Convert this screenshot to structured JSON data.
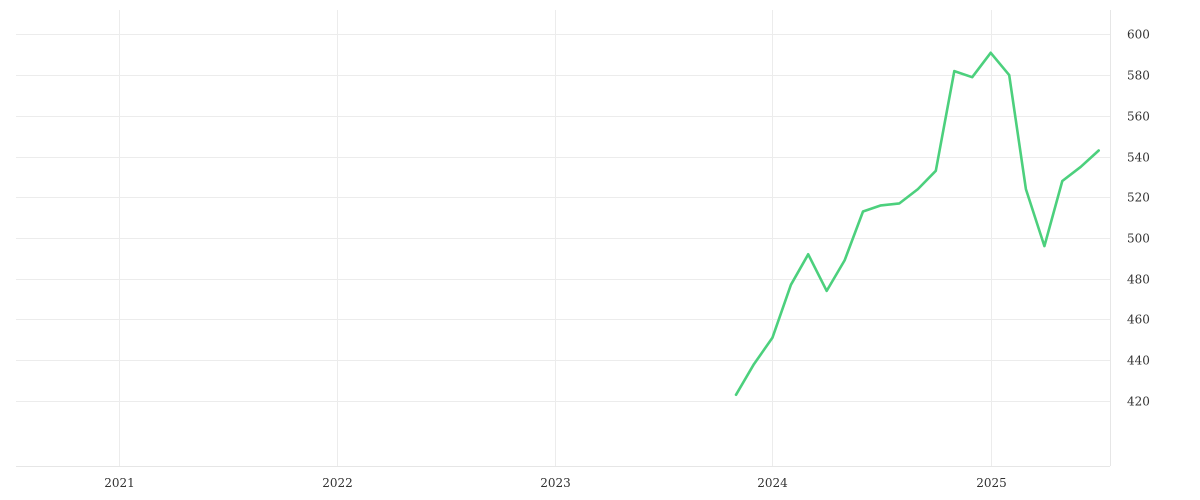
{
  "chart_data": {
    "type": "line",
    "title": "",
    "xlabel": "",
    "ylabel": "",
    "x_axis": {
      "type": "date",
      "range": [
        "2020-07-12",
        "2025-07-20"
      ],
      "ticks": [
        "2021-01-01",
        "2022-01-01",
        "2023-01-01",
        "2024-01-01",
        "2025-01-01"
      ],
      "tick_labels": [
        "2021",
        "2022",
        "2023",
        "2024",
        "2025"
      ],
      "grid": true
    },
    "y_axis": {
      "position": "right",
      "range": [
        388,
        612
      ],
      "ticks": [
        420,
        440,
        460,
        480,
        500,
        520,
        540,
        560,
        580,
        600
      ],
      "tick_labels": [
        "420",
        "440",
        "460",
        "480",
        "500",
        "520",
        "540",
        "560",
        "580",
        "600"
      ],
      "grid": true
    },
    "legend": "none",
    "series": [
      {
        "color": "#4cd07d",
        "points": [
          {
            "x": "2023-11-01",
            "y": 423
          },
          {
            "x": "2023-12-01",
            "y": 438
          },
          {
            "x": "2024-01-01",
            "y": 451
          },
          {
            "x": "2024-02-01",
            "y": 477
          },
          {
            "x": "2024-03-01",
            "y": 492
          },
          {
            "x": "2024-04-01",
            "y": 474
          },
          {
            "x": "2024-05-01",
            "y": 489
          },
          {
            "x": "2024-06-01",
            "y": 513
          },
          {
            "x": "2024-07-01",
            "y": 516
          },
          {
            "x": "2024-08-01",
            "y": 517
          },
          {
            "x": "2024-09-01",
            "y": 524
          },
          {
            "x": "2024-10-01",
            "y": 533
          },
          {
            "x": "2024-11-01",
            "y": 582
          },
          {
            "x": "2024-12-01",
            "y": 579
          },
          {
            "x": "2025-01-01",
            "y": 591
          },
          {
            "x": "2025-02-01",
            "y": 580
          },
          {
            "x": "2025-03-01",
            "y": 524
          },
          {
            "x": "2025-04-01",
            "y": 496
          },
          {
            "x": "2025-05-01",
            "y": 528
          },
          {
            "x": "2025-06-01",
            "y": 535
          },
          {
            "x": "2025-07-01",
            "y": 543
          }
        ]
      }
    ]
  }
}
